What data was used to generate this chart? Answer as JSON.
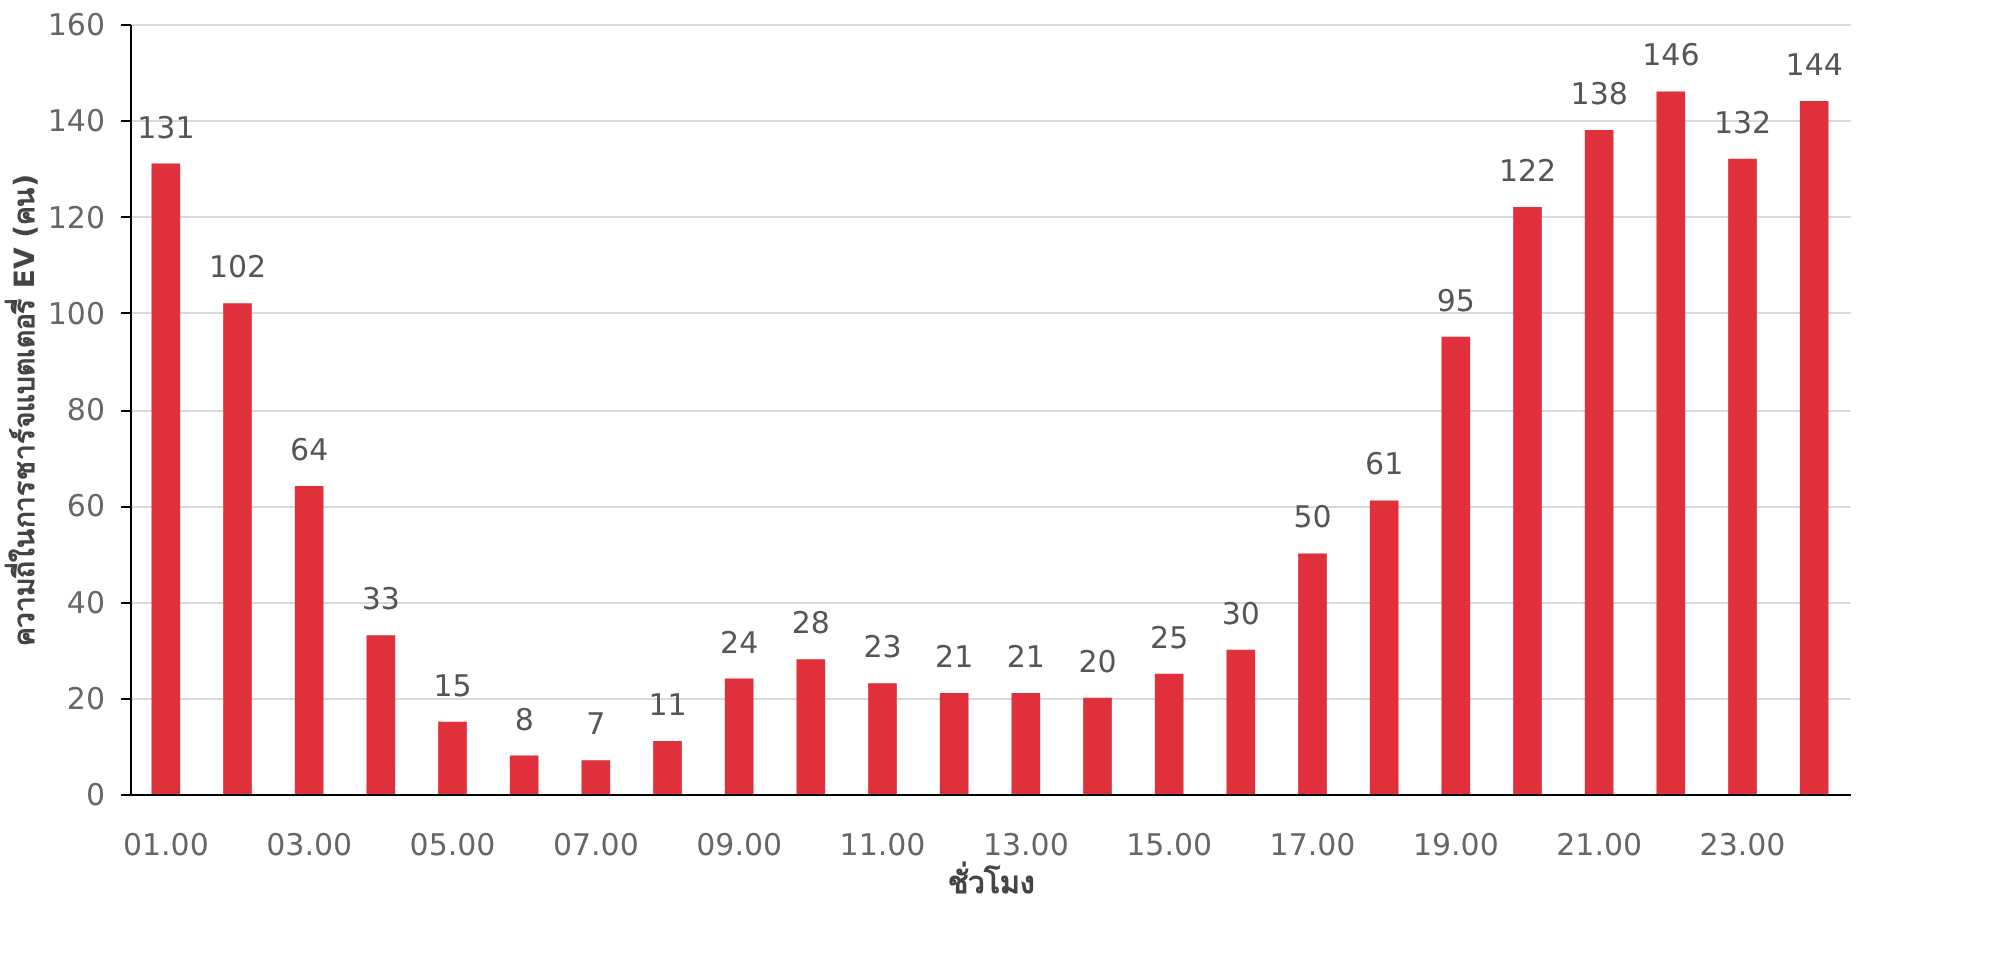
{
  "chart_data": {
    "type": "bar",
    "xlabel": "ชั่วโมง",
    "ylabel": "ความถี่ในการชาร์จแบตเตอรี่ EV (คน)",
    "categories": [
      "01.00",
      null,
      "03.00",
      null,
      "05.00",
      null,
      "07.00",
      null,
      "09.00",
      null,
      "11.00",
      null,
      "13.00",
      null,
      "15.00",
      null,
      "17.00",
      null,
      "19.00",
      null,
      "21.00",
      null,
      "23.00",
      null
    ],
    "values": [
      131,
      102,
      64,
      33,
      15,
      8,
      7,
      11,
      24,
      28,
      23,
      21,
      21,
      20,
      25,
      30,
      50,
      61,
      95,
      122,
      138,
      146,
      132,
      144
    ],
    "color": "#e0303c",
    "ylim": [
      0,
      160
    ],
    "yticks": [
      0,
      20,
      40,
      60,
      80,
      100,
      120,
      140,
      160
    ],
    "grid": "y",
    "data_labels": true
  }
}
